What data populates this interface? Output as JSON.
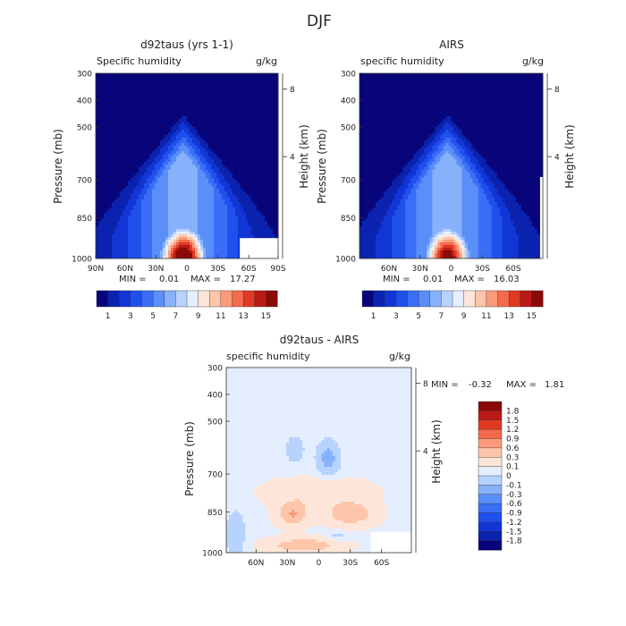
{
  "figure_title": "DJF",
  "colors": {
    "specific_humidity_scale": [
      "#08047a",
      "#0a22ad",
      "#1136d5",
      "#2050ec",
      "#3a6ef6",
      "#5a8ef9",
      "#87b1fb",
      "#b7d3fd",
      "#e4eefe",
      "#fde6d9",
      "#fdc5aa",
      "#fb9b7c",
      "#f46a4d",
      "#e03a25",
      "#bc1a14",
      "#8a0a0a"
    ],
    "difference_scale": [
      "#08047a",
      "#0a22ad",
      "#1136d5",
      "#2050ec",
      "#3a6ef6",
      "#5a8ef9",
      "#87b1fb",
      "#b7d3fd",
      "#e4eefe",
      "#fde6d9",
      "#fdc5aa",
      "#fb9b7c",
      "#f46a4d",
      "#e03a25",
      "#bc1a14",
      "#8a0a0a"
    ]
  },
  "chart_data": [
    {
      "type": "heatmap",
      "title": "d92taus (yrs 1-1)",
      "subtitle_left": "Specific humidity",
      "units": "g/kg",
      "ylabel": "Pressure (mb)",
      "ylabel_right": "Height (km)",
      "y_ticks": [
        "300",
        "400",
        "500",
        "700",
        "850",
        "1000"
      ],
      "y_right_ticks": [
        "8",
        "4"
      ],
      "x_ticks": [
        "90N",
        "60N",
        "30N",
        "0",
        "30S",
        "60S",
        "90S"
      ],
      "min_label": "MIN =",
      "min": "0.01",
      "max_label": "MAX =",
      "max": "17.27",
      "peak": 17.27,
      "colorbar_labels": [
        "1",
        "3",
        "5",
        "7",
        "9",
        "11",
        "13",
        "15"
      ]
    },
    {
      "type": "heatmap",
      "title": "AIRS",
      "subtitle_left": "specific humidity",
      "units": "g/kg",
      "ylabel": "Pressure (mb)",
      "ylabel_right": "Height (km)",
      "y_ticks": [
        "300",
        "400",
        "500",
        "700",
        "850",
        "1000"
      ],
      "y_right_ticks": [
        "8",
        "4"
      ],
      "x_ticks": [
        "60N",
        "30N",
        "0",
        "30S",
        "60S"
      ],
      "min_label": "MIN =",
      "min": "0.01",
      "max_label": "MAX =",
      "max": "16.03",
      "peak": 16.03,
      "colorbar_labels": [
        "1",
        "3",
        "5",
        "7",
        "9",
        "11",
        "13",
        "15"
      ]
    },
    {
      "type": "heatmap",
      "title": "d92taus - AIRS",
      "subtitle_left": "specific humidity",
      "units": "g/kg",
      "ylabel": "Pressure (mb)",
      "ylabel_right": "Height (km)",
      "y_ticks": [
        "300",
        "400",
        "500",
        "700",
        "850",
        "1000"
      ],
      "y_right_ticks": [
        "8",
        "4"
      ],
      "x_ticks": [
        "60N",
        "30N",
        "0",
        "30S",
        "60S"
      ],
      "min_label": "MIN =",
      "min": "-0.32",
      "max_label": "MAX =",
      "max": "1.81",
      "colorbar_labels": [
        "1.8",
        "1.5",
        "1.2",
        "0.9",
        "0.6",
        "0.3",
        "0.1",
        "0",
        "-0.1",
        "-0.3",
        "-0.6",
        "-0.9",
        "-1.2",
        "-1.5",
        "-1.8"
      ]
    }
  ]
}
